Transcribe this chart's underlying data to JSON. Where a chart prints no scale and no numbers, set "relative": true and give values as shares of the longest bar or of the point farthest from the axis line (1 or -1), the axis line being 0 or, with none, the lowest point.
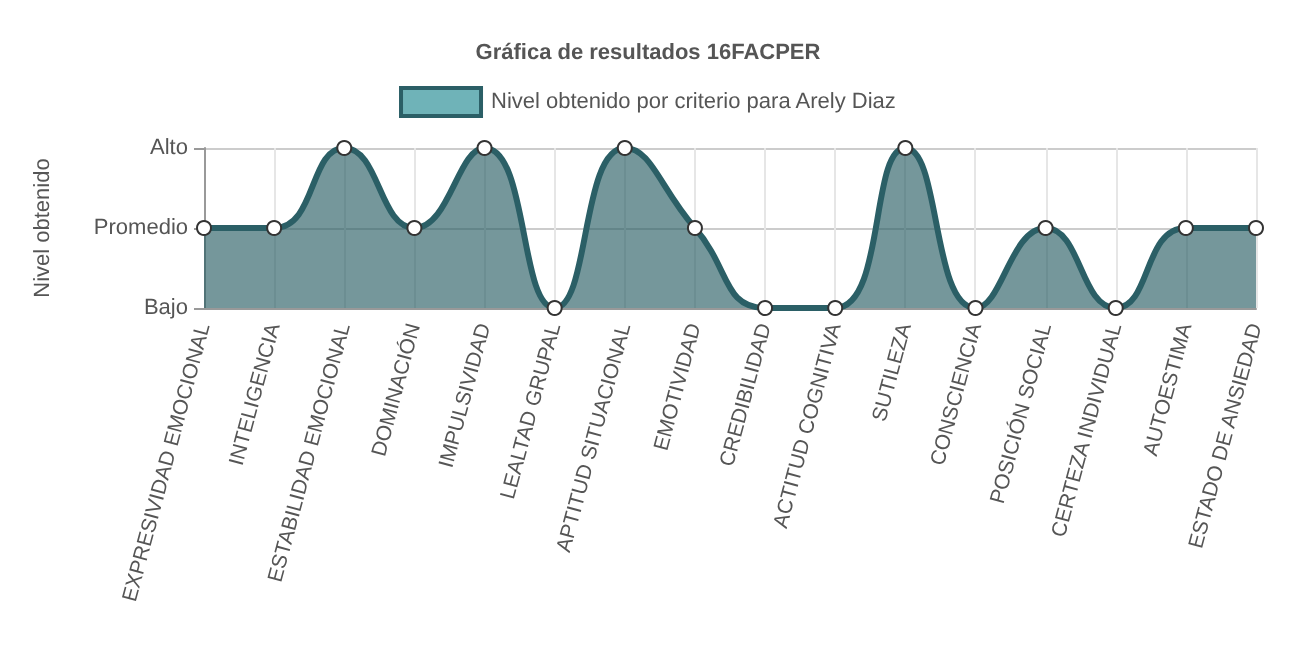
{
  "chart_data": {
    "type": "area",
    "title": "Gráfica de resultados 16FACPER",
    "ylabel": "Nivel obtenido",
    "categories": [
      "EXPRESIVIDAD EMOCIONAL",
      "INTELIGENCIA",
      "ESTABILIDAD EMOCIONAL",
      "DOMINACIÓN",
      "IMPULSIVIDAD",
      "LEALTAD GRUPAL",
      "APTITUD SITUACIONAL",
      "EMOTIVIDAD",
      "CREDIBILIDAD",
      "ACTITUD COGNITIVA",
      "SUTILEZA",
      "CONSCIENCIA",
      "POSICIÓN SOCIAL",
      "CERTEZA INDIVIDUAL",
      "AUTOESTIMA",
      "ESTADO DE ANSIEDAD"
    ],
    "series": [
      {
        "name": "Nivel obtenido por criterio para Arely Diaz",
        "color": "#2b5f66",
        "values": [
          0.5,
          0.5,
          1,
          0.5,
          1,
          0,
          1,
          0.5,
          0,
          0,
          1,
          0,
          0.5,
          0,
          0.5,
          0.5
        ]
      }
    ],
    "relative": true,
    "annotations": [
      "Bajo",
      "Promedio",
      "Alto"
    ],
    "grid": true,
    "legend": "top",
    "marker": "circle"
  }
}
